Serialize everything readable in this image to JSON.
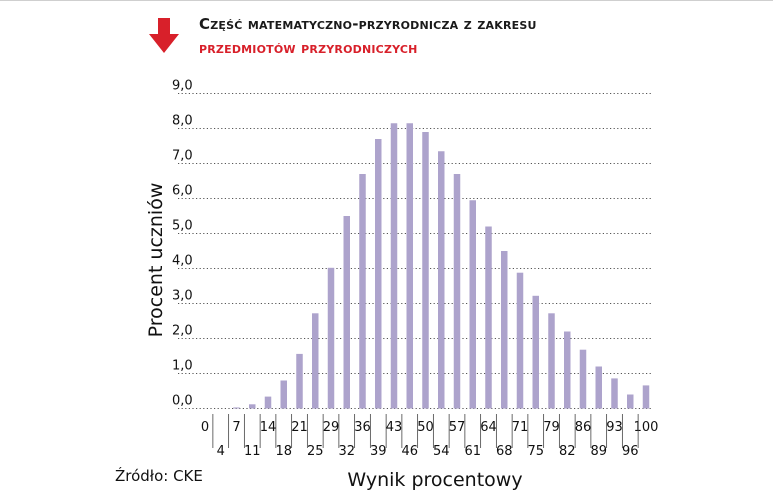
{
  "header": {
    "title_line1": "Część matematyczno-przyrodnicza z zakresu",
    "title_line2": "przedmiotów przyrodniczych",
    "arrow_icon": "down-arrow-icon"
  },
  "source": "Źródło: CKE",
  "colors": {
    "bar": "#ada3cc",
    "accent": "#d8202a",
    "grid": "#555555",
    "text": "#111111"
  },
  "chart_data": {
    "type": "bar",
    "xlabel": "Wynik procentowy",
    "ylabel": "Procent uczniów",
    "ylim": [
      0,
      9
    ],
    "yticks": [
      "0,0",
      "1,0",
      "2,0",
      "3,0",
      "4,0",
      "5,0",
      "6,0",
      "7,0",
      "8,0",
      "9,0"
    ],
    "grid": "horizontal-dotted",
    "categories": [
      "0",
      "4",
      "7",
      "11",
      "14",
      "18",
      "21",
      "25",
      "29",
      "32",
      "36",
      "39",
      "43",
      "46",
      "50",
      "54",
      "57",
      "61",
      "64",
      "68",
      "71",
      "75",
      "79",
      "82",
      "86",
      "89",
      "93",
      "96",
      "100"
    ],
    "values": [
      0.0,
      0.0,
      0.03,
      0.12,
      0.34,
      0.8,
      1.56,
      2.72,
      4.02,
      5.5,
      6.7,
      7.7,
      8.15,
      8.15,
      7.9,
      7.35,
      6.7,
      5.95,
      5.2,
      4.5,
      3.88,
      3.22,
      2.72,
      2.2,
      1.68,
      1.2,
      0.86,
      0.4,
      0.66
    ]
  }
}
